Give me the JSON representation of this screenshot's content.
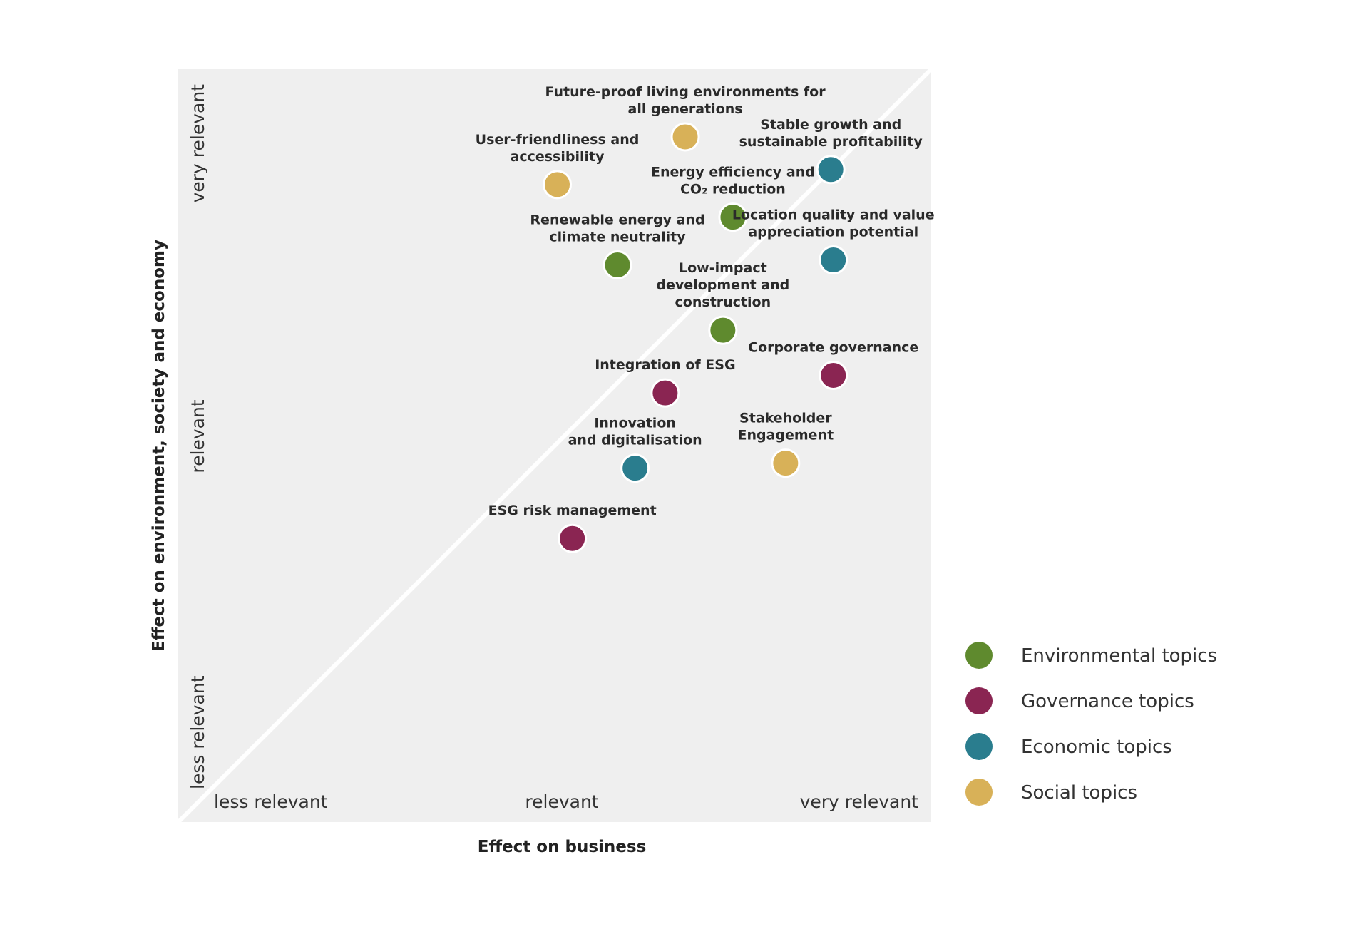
{
  "chart_data": {
    "type": "scatter",
    "title": "",
    "xlabel": "Effect on business",
    "ylabel": "Effect on environment, society and economy",
    "xlim": [
      0,
      3
    ],
    "ylim": [
      0,
      3
    ],
    "x_ticks": [
      {
        "value": 0.5,
        "label": "less relevant"
      },
      {
        "value": 1.5,
        "label": "relevant"
      },
      {
        "value": 2.5,
        "label": "very relevant"
      }
    ],
    "y_ticks": [
      {
        "value": 0.5,
        "label": "less relevant"
      },
      {
        "value": 1.5,
        "label": "relevant"
      },
      {
        "value": 2.5,
        "label": "very relevant"
      }
    ],
    "grid": false,
    "diagonal_reference_line": true,
    "legend_position": "bottom-right",
    "series": [
      {
        "name": "Environmental topics",
        "color": "#5f8a2e",
        "points": [
          {
            "label": "Energy efficiency and\nCO₂ reduction",
            "x": 2.21,
            "y": 2.41
          },
          {
            "label": "Renewable energy and\nclimate neutrality",
            "x": 1.75,
            "y": 2.22
          },
          {
            "label": "Low-impact\ndevelopment and\nconstruction",
            "x": 2.17,
            "y": 1.96
          }
        ]
      },
      {
        "name": "Governance topics",
        "color": "#8a2552",
        "points": [
          {
            "label": "Integration of ESG",
            "x": 1.94,
            "y": 1.71
          },
          {
            "label": "Corporate governance",
            "x": 2.61,
            "y": 1.78
          },
          {
            "label": "ESG risk management",
            "x": 1.57,
            "y": 1.13
          }
        ]
      },
      {
        "name": "Economic topics",
        "color": "#2a7d8e",
        "points": [
          {
            "label": "Stable growth and\nsustainable profitability",
            "x": 2.6,
            "y": 2.6
          },
          {
            "label": "Location quality and value\nappreciation potential",
            "x": 2.61,
            "y": 2.24
          },
          {
            "label": "Innovation\nand digitalisation",
            "x": 1.82,
            "y": 1.41
          }
        ]
      },
      {
        "name": "Social topics",
        "color": "#d8b158",
        "points": [
          {
            "label": "Future-proof living environments for\nall generations",
            "x": 2.02,
            "y": 2.73
          },
          {
            "label": "User-friendliness and\naccessibility",
            "x": 1.51,
            "y": 2.54
          },
          {
            "label": "Stakeholder\nEngagement",
            "x": 2.42,
            "y": 1.43
          }
        ]
      }
    ]
  }
}
